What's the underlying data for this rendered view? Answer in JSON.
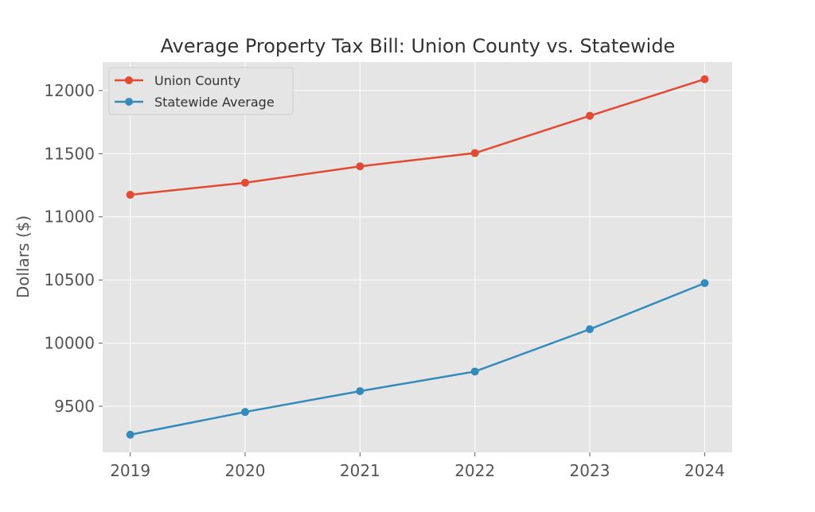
{
  "chart_data": {
    "type": "line",
    "title": "Average Property Tax Bill: Union County vs. Statewide",
    "xlabel": "",
    "ylabel": "Dollars ($)",
    "x": [
      2019,
      2020,
      2021,
      2022,
      2023,
      2024
    ],
    "x_tick_labels": [
      "2019",
      "2020",
      "2021",
      "2022",
      "2023",
      "2024"
    ],
    "y_ticks": [
      9500,
      10000,
      10500,
      11000,
      11500,
      12000
    ],
    "y_tick_labels": [
      "9500",
      "10000",
      "10500",
      "11000",
      "11500",
      "12000"
    ],
    "xlim": [
      2018.76,
      2024.24
    ],
    "ylim": [
      9135,
      12226
    ],
    "grid": true,
    "legend_position": "top-left",
    "series": [
      {
        "name": "Union County",
        "color": "#E24A33",
        "marker": "circle",
        "values": [
          11175,
          11270,
          11400,
          11505,
          11800,
          12090
        ]
      },
      {
        "name": "Statewide Average",
        "color": "#348ABD",
        "marker": "circle",
        "values": [
          9275,
          9455,
          9620,
          9775,
          10110,
          10475
        ]
      }
    ]
  }
}
